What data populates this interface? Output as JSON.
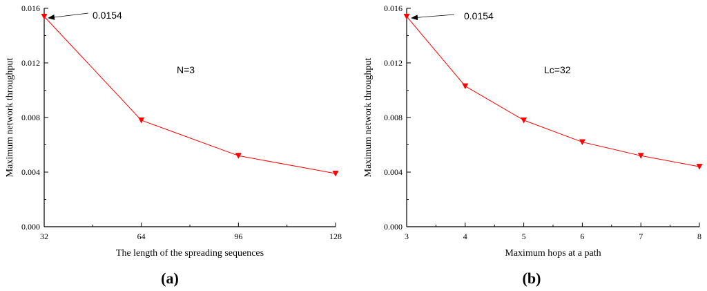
{
  "chart_data": [
    {
      "type": "line",
      "panel_label": "(a)",
      "xlabel": "The length of the spreading sequences",
      "ylabel": "Maximum network throughput",
      "xlim": [
        32,
        128
      ],
      "ylim": [
        0,
        0.016
      ],
      "xticks": [
        32,
        64,
        96,
        128
      ],
      "xtick_labels": [
        "32",
        "64",
        "96",
        "128"
      ],
      "yticks": [
        0,
        0.004,
        0.008,
        0.012,
        0.016
      ],
      "ytick_labels": [
        "0.000",
        "0.004",
        "0.008",
        "0.012",
        "0.016"
      ],
      "grid": false,
      "color": "#ff0000",
      "marker": "down-triangle",
      "x": [
        32,
        64,
        96,
        128
      ],
      "y": [
        0.0154,
        0.0078,
        0.0052,
        0.0039
      ],
      "annotation_value": "0.0154",
      "parameter_note": "N=3"
    },
    {
      "type": "line",
      "panel_label": "(b)",
      "xlabel": "Maximum hops at a path",
      "ylabel": "Maximum network throughput",
      "xlim": [
        3,
        8
      ],
      "ylim": [
        0,
        0.016
      ],
      "xticks": [
        3,
        4,
        5,
        6,
        7,
        8
      ],
      "xtick_labels": [
        "3",
        "4",
        "5",
        "6",
        "7",
        "8"
      ],
      "yticks": [
        0,
        0.004,
        0.008,
        0.012,
        0.016
      ],
      "ytick_labels": [
        "0.000",
        "0.004",
        "0.008",
        "0.012",
        "0.016"
      ],
      "grid": false,
      "color": "#ff0000",
      "marker": "down-triangle",
      "x": [
        3,
        4,
        5,
        6,
        7,
        8
      ],
      "y": [
        0.0154,
        0.0103,
        0.0078,
        0.0062,
        0.0052,
        0.0044
      ],
      "annotation_value": "0.0154",
      "parameter_note": "Lc=32"
    }
  ]
}
